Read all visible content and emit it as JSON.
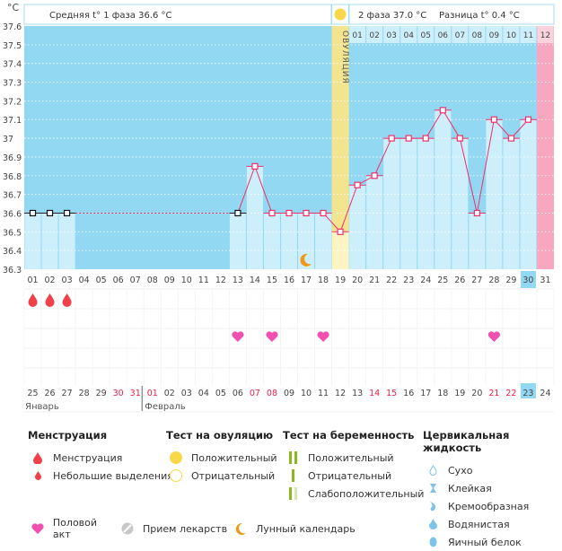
{
  "header": {
    "unit": "°C",
    "phase1": "Средняя t° 1 фаза 36.6 °C",
    "phase2": "2 фаза 37.0 °C",
    "diff": "Разница t° 0.4 °C",
    "ovulation": "ОВУЛЯЦИЯ"
  },
  "colors": {
    "plot_bg": "#92d8f2",
    "bar": "#cdeefb",
    "ovulation": "#f3e58f",
    "period_next": "#f7a8c0",
    "line": "#f0306a",
    "weekend": "#e8204a",
    "highlight": "#92d8f2"
  },
  "chart_data": {
    "type": "line",
    "ylabel": "°C",
    "ylim": [
      36.3,
      37.6
    ],
    "yticks": [
      "37.6",
      "37.5",
      "37.4",
      "37.3",
      "37.2",
      "37.1",
      "37",
      "36.9",
      "36.8",
      "36.7",
      "36.6",
      "36.5",
      "36.4",
      "36.3"
    ],
    "cycle_days": [
      "01",
      "02",
      "03",
      "04",
      "05",
      "06",
      "07",
      "08",
      "09",
      "10",
      "11",
      "12",
      "13",
      "14",
      "15",
      "16",
      "17",
      "18",
      "19",
      "20",
      "21",
      "22",
      "23",
      "24",
      "25",
      "26",
      "27",
      "28",
      "29",
      "30",
      "31"
    ],
    "temperature": [
      36.6,
      36.6,
      36.6,
      null,
      null,
      null,
      null,
      null,
      null,
      null,
      null,
      null,
      36.6,
      36.85,
      36.6,
      36.6,
      36.6,
      36.6,
      36.5,
      36.75,
      36.8,
      37.0,
      37.0,
      37.0,
      37.15,
      37.0,
      36.6,
      37.1,
      37.0,
      37.1,
      null
    ],
    "coverline": 36.6,
    "ovulation_day": 19,
    "current_day": 30,
    "luteal_labels": [
      "01",
      "02",
      "03",
      "04",
      "05",
      "06",
      "07",
      "08",
      "09",
      "10",
      "11",
      "12"
    ],
    "menstruation_days": [
      1,
      2,
      3
    ],
    "intercourse_days": [
      13,
      15,
      18,
      28
    ],
    "moon_days": [
      17
    ],
    "next_period_day": 31,
    "dates": [
      "25",
      "26",
      "27",
      "28",
      "29",
      "30",
      "31",
      "01",
      "02",
      "03",
      "04",
      "05",
      "06",
      "07",
      "08",
      "09",
      "10",
      "11",
      "12",
      "13",
      "14",
      "15",
      "16",
      "17",
      "18",
      "19",
      "20",
      "21",
      "22",
      "23",
      "24"
    ],
    "weekend_dates": [
      6,
      7,
      13,
      14,
      20,
      21,
      27,
      28
    ],
    "highlight_date_index": 29,
    "months": [
      "Январь",
      "Февраль"
    ]
  },
  "legend": {
    "menstruation": {
      "title": "Менструация",
      "items": [
        "Менструация",
        "Небольшие выделения"
      ]
    },
    "ovulation_test": {
      "title": "Тест на овуляцию",
      "items": [
        "Положительный",
        "Отрицательный"
      ]
    },
    "pregnancy_test": {
      "title": "Тест на беременность",
      "items": [
        "Положительный",
        "Отрицательный",
        "Слабоположительный"
      ]
    },
    "cervical": {
      "title": "Цервикальная жидкость",
      "items": [
        "Сухо",
        "Клейкая",
        "Кремообразная",
        "Водянистая",
        "Яичный белок"
      ]
    },
    "other": [
      "Половой акт",
      "Прием лекарств",
      "Лунный календарь"
    ]
  }
}
